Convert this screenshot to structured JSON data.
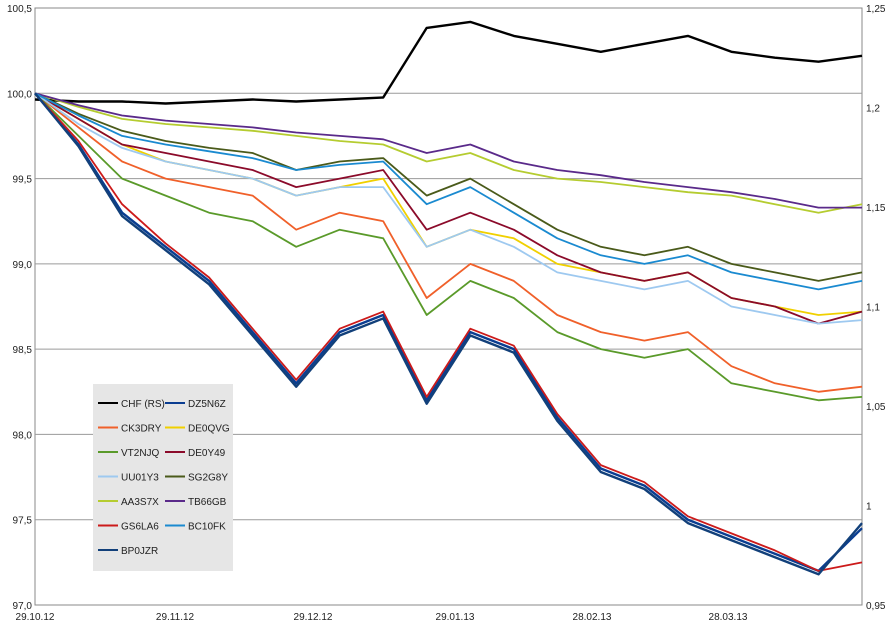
{
  "chart_data": {
    "type": "line",
    "title": "",
    "xlabel": "",
    "ylabel": "",
    "ylim": [
      97.0,
      100.5
    ],
    "y2lim": [
      0.95,
      1.25
    ],
    "yticks": [
      "97,0",
      "97,5",
      "98,0",
      "98,5",
      "99,0",
      "99,5",
      "100,0",
      "100,5"
    ],
    "y2ticks": [
      "0,95",
      "1",
      "1,05",
      "1,1",
      "1,15",
      "1,2",
      "1,25"
    ],
    "xticks": [
      "29.10.12",
      "29.11.12",
      "29.12.12",
      "29.01.13",
      "28.02.13",
      "28.03.13"
    ],
    "grid": "horizontal",
    "legend_position": "bottom-left",
    "x": [
      0,
      9,
      18,
      27,
      36,
      45,
      54,
      63,
      72,
      81,
      90,
      99,
      108,
      117,
      126,
      135,
      144,
      153,
      162,
      171
    ],
    "series": [
      {
        "name": "CHF (RS)",
        "color": "#000000",
        "axis": "right",
        "values": [
          1.204,
          1.203,
          1.203,
          1.202,
          1.203,
          1.204,
          1.203,
          1.204,
          1.205,
          1.24,
          1.243,
          1.236,
          1.232,
          1.228,
          1.232,
          1.236,
          1.228,
          1.225,
          1.223,
          1.226
        ]
      },
      {
        "name": "DZ5N6Z",
        "color": "#0a3d91",
        "values": [
          100.0,
          99.7,
          99.3,
          99.1,
          98.9,
          98.6,
          98.3,
          98.6,
          98.7,
          98.2,
          98.6,
          98.5,
          98.1,
          97.8,
          97.7,
          97.5,
          97.4,
          97.3,
          97.2,
          97.45
        ]
      },
      {
        "name": "CK3DRY",
        "color": "#f0602a",
        "values": [
          100.0,
          99.8,
          99.6,
          99.5,
          99.45,
          99.4,
          99.2,
          99.3,
          99.25,
          98.8,
          99.0,
          98.9,
          98.7,
          98.6,
          98.55,
          98.6,
          98.4,
          98.3,
          98.25,
          98.28
        ]
      },
      {
        "name": "DE0QVG",
        "color": "#f0d000",
        "values": [
          100.0,
          99.85,
          99.7,
          99.6,
          99.55,
          99.5,
          99.4,
          99.45,
          99.5,
          99.1,
          99.2,
          99.15,
          99.0,
          98.95,
          98.9,
          98.95,
          98.8,
          98.75,
          98.7,
          98.72
        ]
      },
      {
        "name": "VT2NJQ",
        "color": "#5a9a2a",
        "values": [
          100.0,
          99.75,
          99.5,
          99.4,
          99.3,
          99.25,
          99.1,
          99.2,
          99.15,
          98.7,
          98.9,
          98.8,
          98.6,
          98.5,
          98.45,
          98.5,
          98.3,
          98.25,
          98.2,
          98.22
        ]
      },
      {
        "name": "DE0Y49",
        "color": "#8b0a2a",
        "values": [
          100.0,
          99.85,
          99.7,
          99.65,
          99.6,
          99.55,
          99.45,
          99.5,
          99.55,
          99.2,
          99.3,
          99.2,
          99.05,
          98.95,
          98.9,
          98.95,
          98.8,
          98.75,
          98.65,
          98.72
        ]
      },
      {
        "name": "UU01Y3",
        "color": "#9ec9f0",
        "values": [
          100.0,
          99.82,
          99.68,
          99.6,
          99.55,
          99.5,
          99.4,
          99.45,
          99.45,
          99.1,
          99.2,
          99.1,
          98.95,
          98.9,
          98.85,
          98.9,
          98.75,
          98.7,
          98.65,
          98.67
        ]
      },
      {
        "name": "SG2G8Y",
        "color": "#4a5a1a",
        "values": [
          100.0,
          99.88,
          99.78,
          99.72,
          99.68,
          99.65,
          99.55,
          99.6,
          99.62,
          99.4,
          99.5,
          99.35,
          99.2,
          99.1,
          99.05,
          99.1,
          99.0,
          98.95,
          98.9,
          98.95
        ]
      },
      {
        "name": "AA3S7X",
        "color": "#b5cc30",
        "values": [
          100.0,
          99.92,
          99.85,
          99.82,
          99.8,
          99.78,
          99.75,
          99.72,
          99.7,
          99.6,
          99.65,
          99.55,
          99.5,
          99.48,
          99.45,
          99.42,
          99.4,
          99.35,
          99.3,
          99.35
        ]
      },
      {
        "name": "TB66GB",
        "color": "#5a2a8a",
        "values": [
          100.0,
          99.93,
          99.87,
          99.84,
          99.82,
          99.8,
          99.77,
          99.75,
          99.73,
          99.65,
          99.7,
          99.6,
          99.55,
          99.52,
          99.48,
          99.45,
          99.42,
          99.38,
          99.33,
          99.33
        ]
      },
      {
        "name": "GS6LA6",
        "color": "#cc1a1a",
        "values": [
          100.0,
          99.72,
          99.35,
          99.12,
          98.92,
          98.62,
          98.32,
          98.62,
          98.72,
          98.22,
          98.62,
          98.52,
          98.12,
          97.82,
          97.72,
          97.52,
          97.42,
          97.32,
          97.2,
          97.25
        ]
      },
      {
        "name": "BC10FK",
        "color": "#1a8ad0",
        "values": [
          100.0,
          99.87,
          99.75,
          99.7,
          99.66,
          99.62,
          99.55,
          99.58,
          99.6,
          99.35,
          99.45,
          99.3,
          99.15,
          99.05,
          99.0,
          99.05,
          98.95,
          98.9,
          98.85,
          98.9
        ]
      },
      {
        "name": "BP0JZR",
        "color": "#12407a",
        "values": [
          100.0,
          99.69,
          99.28,
          99.08,
          98.88,
          98.58,
          98.28,
          98.58,
          98.68,
          98.18,
          98.58,
          98.48,
          98.08,
          97.78,
          97.68,
          97.48,
          97.38,
          97.28,
          97.18,
          97.48
        ]
      }
    ]
  }
}
